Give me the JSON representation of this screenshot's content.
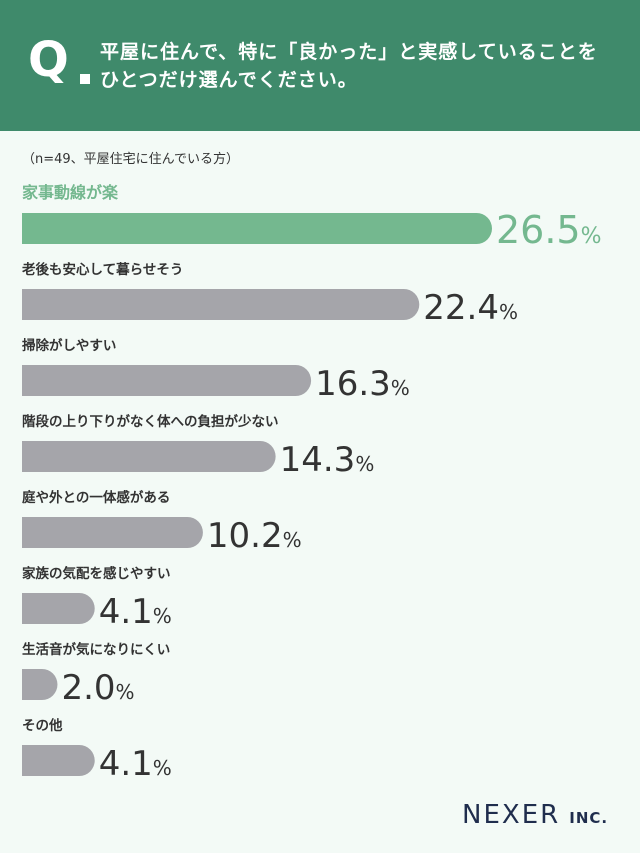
{
  "header": {
    "q_label": "Q",
    "question_line1": "平屋に住んで、特に「良かった」と実感していることを",
    "question_line2": "ひとつだけ選んでください。"
  },
  "sample_note": "（n=49、平屋住宅に住んでいる方）",
  "colors": {
    "header_bg": "#3f8a6b",
    "highlight": "#74b88f",
    "bar": "#a5a5aa",
    "text_dark": "#333333",
    "background": "#f3faf6"
  },
  "chart_data": {
    "type": "bar",
    "orientation": "horizontal",
    "categories": [
      "家事動線が楽",
      "老後も安心して暮らせそう",
      "掃除がしやすい",
      "階段の上り下りがなく体への負担が少ない",
      "庭や外との一体感がある",
      "家族の気配を感じやすい",
      "生活音が気になりにくい",
      "その他"
    ],
    "values": [
      26.5,
      22.4,
      16.3,
      14.3,
      10.2,
      4.1,
      2.0,
      4.1
    ],
    "value_labels": [
      "26.5",
      "22.4",
      "16.3",
      "14.3",
      "10.2",
      "4.1",
      "2.0",
      "4.1"
    ],
    "unit": "%",
    "highlight_index": 0,
    "xlim": [
      0,
      26.5
    ]
  },
  "logo": {
    "name": "NEXER",
    "suffix": "INC."
  }
}
